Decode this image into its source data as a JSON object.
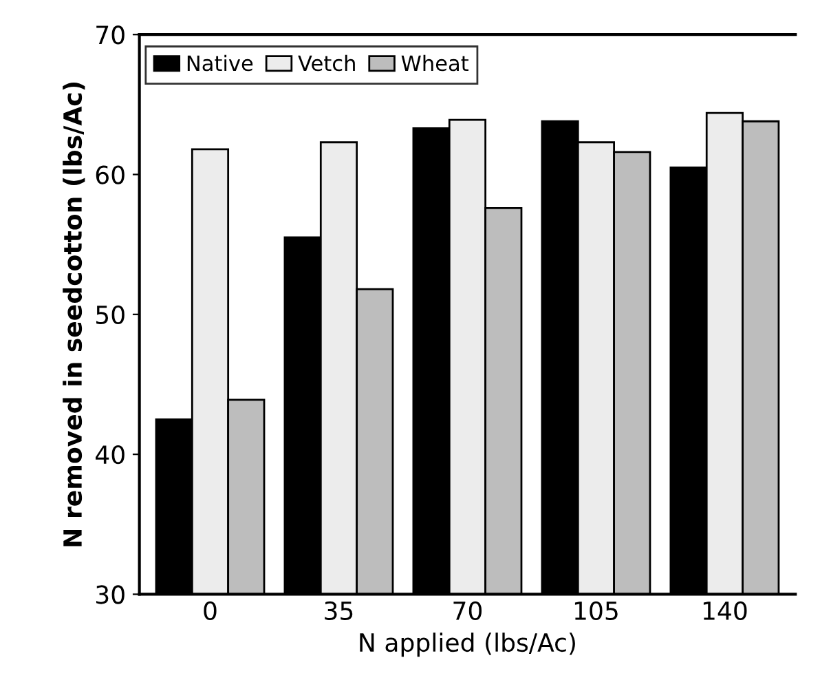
{
  "chart_data": {
    "type": "bar",
    "xlabel": "N applied (lbs/Ac)",
    "ylabel": "N removed in seedcotton (lbs/Ac)",
    "categories": [
      "0",
      "35",
      "70",
      "105",
      "140"
    ],
    "series": [
      {
        "name": "Native",
        "color": "#000000",
        "values": [
          42.5,
          55.5,
          63.3,
          63.8,
          60.5
        ]
      },
      {
        "name": "Vetch",
        "color": "#ececec",
        "values": [
          61.8,
          62.3,
          63.9,
          62.3,
          64.4
        ]
      },
      {
        "name": "Wheat",
        "color": "#bdbdbd",
        "values": [
          43.9,
          51.8,
          57.6,
          61.6,
          63.8
        ]
      }
    ],
    "ylim": [
      30,
      70
    ],
    "yticks": [
      30,
      40,
      50,
      60,
      70
    ],
    "grid": false,
    "legend": "top left"
  }
}
